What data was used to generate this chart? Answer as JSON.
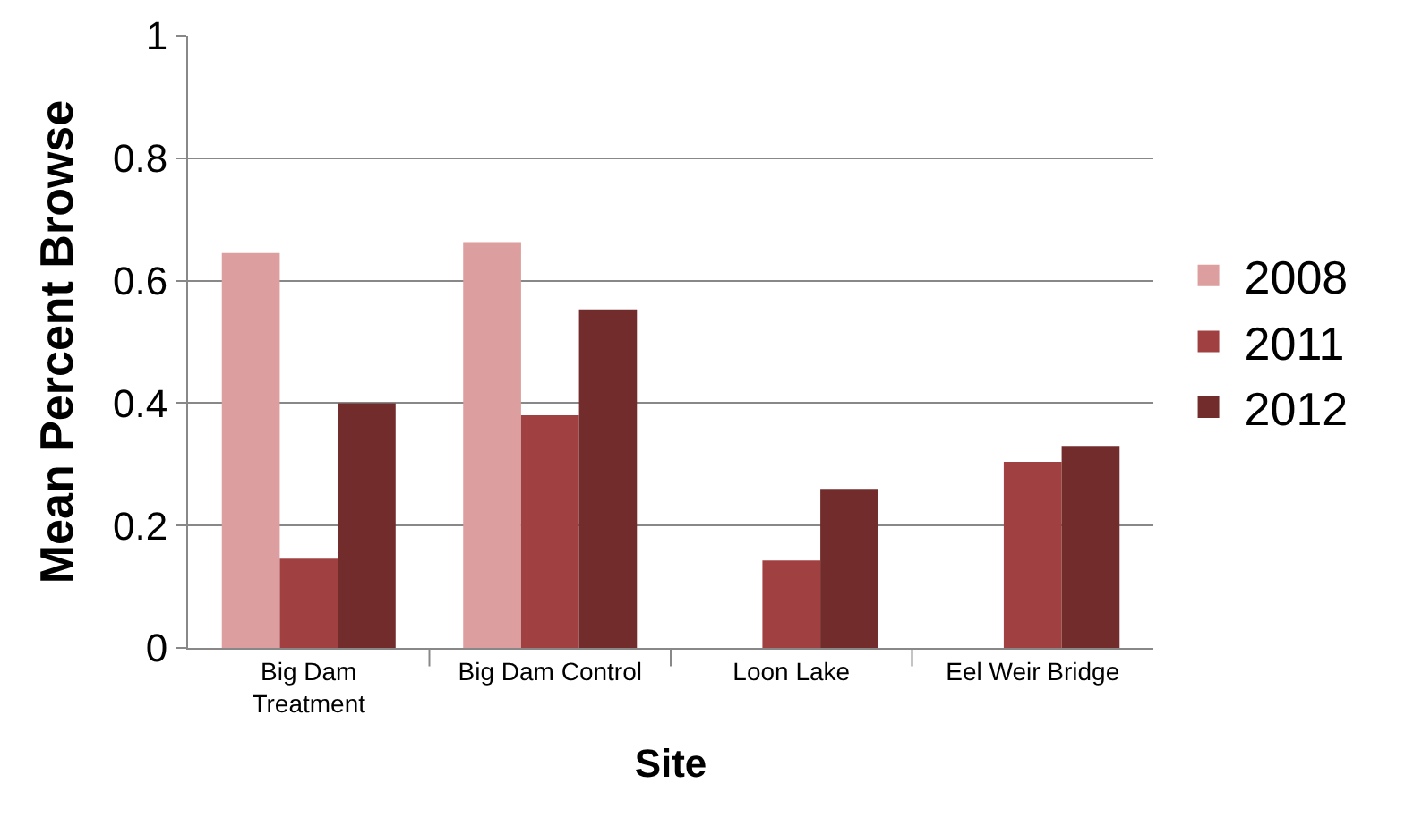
{
  "chart_data": {
    "type": "bar",
    "xlabel": "Site",
    "ylabel": "Mean Percent Browse",
    "categories": [
      "Big Dam Treatment",
      "Big Dam Control",
      "Loon Lake",
      "Eel Weir Bridge"
    ],
    "series": [
      {
        "name": "2008",
        "color": "#dc9e9e",
        "values": [
          0.645,
          0.663,
          null,
          null
        ]
      },
      {
        "name": "2011",
        "color": "#a04040",
        "values": [
          0.146,
          0.38,
          0.143,
          0.304
        ]
      },
      {
        "name": "2012",
        "color": "#722c2c",
        "values": [
          0.4,
          0.553,
          0.26,
          0.33
        ]
      }
    ],
    "ylim": [
      0,
      1
    ],
    "yticks": [
      0,
      0.2,
      0.4,
      0.6,
      0.8,
      1
    ],
    "grid": "y",
    "legend": "right"
  }
}
